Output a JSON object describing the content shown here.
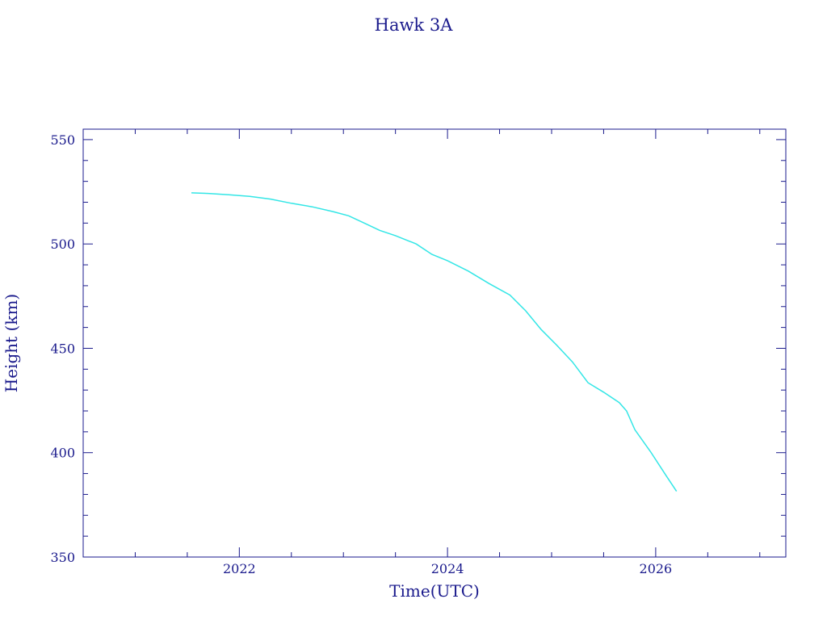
{
  "chart_data": {
    "type": "line",
    "title": "Hawk 3A",
    "xlabel": "Time(UTC)",
    "ylabel": "Height (km)",
    "xlim": [
      2020.5,
      2027.25
    ],
    "ylim": [
      350,
      555
    ],
    "x_ticks": [
      2022,
      2024,
      2026
    ],
    "x_tick_labels": [
      "2022",
      "2024",
      "2026"
    ],
    "y_ticks": [
      350,
      400,
      450,
      500,
      550
    ],
    "y_tick_labels": [
      "350",
      "400",
      "450",
      "500",
      "550"
    ],
    "grid": false,
    "colors": {
      "axis": "#1a1a8c",
      "series": "#33e6e6"
    },
    "series": [
      {
        "x": [
          2021.54,
          2021.7,
          2021.9,
          2022.1,
          2022.3,
          2022.5,
          2022.7,
          2022.9,
          2023.05,
          2023.2,
          2023.35,
          2023.5,
          2023.7,
          2023.85,
          2024.0,
          2024.2,
          2024.4,
          2024.6,
          2024.75,
          2024.9,
          2025.05,
          2025.2,
          2025.35,
          2025.5,
          2025.65,
          2025.72,
          2025.8,
          2025.95,
          2026.1,
          2026.2
        ],
        "y": [
          524.5,
          524.2,
          523.6,
          522.8,
          521.5,
          519.5,
          517.8,
          515.5,
          513.5,
          510.0,
          506.5,
          504.0,
          500.0,
          495.0,
          492.0,
          487.0,
          481.0,
          475.5,
          468.0,
          459.0,
          451.5,
          443.5,
          433.5,
          429.0,
          424.0,
          420.0,
          411.0,
          400.5,
          389.0,
          381.5
        ]
      }
    ]
  }
}
